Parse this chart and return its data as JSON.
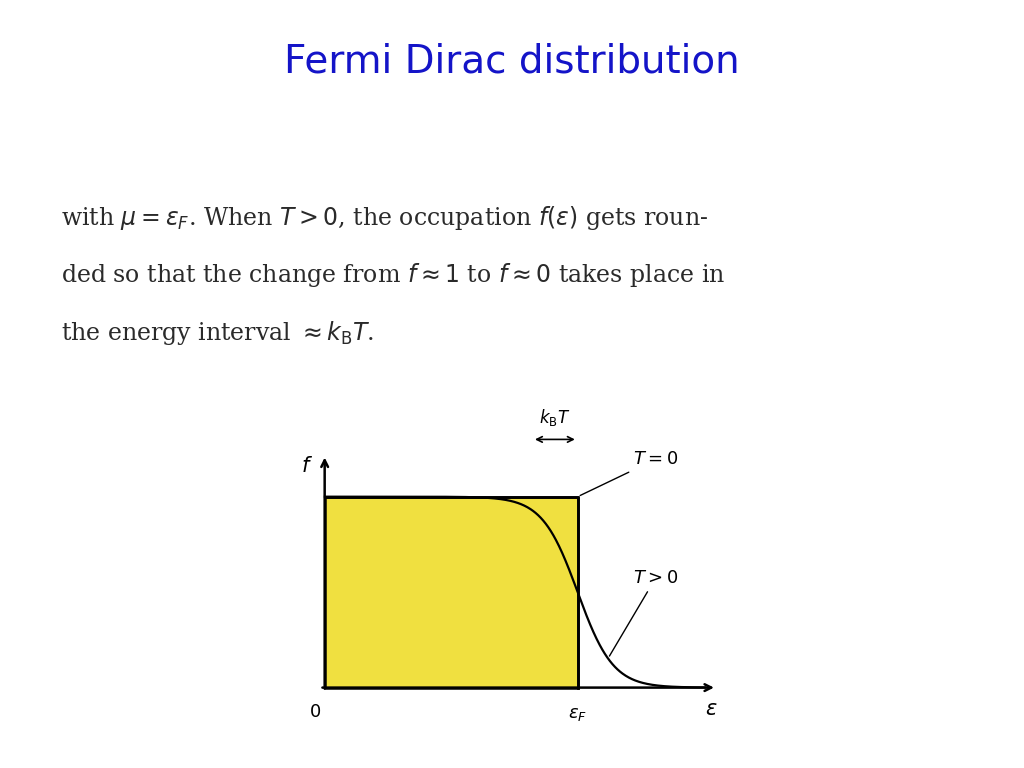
{
  "title": "Fermi Dirac distribution",
  "title_color": "#1414c8",
  "title_fontsize": 28,
  "body_text_line1": "with $\\mu = \\epsilon_F$. When $T > 0$, the occupation $f(\\epsilon)$ gets roun-",
  "body_text_line2": "ded so that the change from $f \\approx 1$ to $f \\approx 0$ takes place in",
  "body_text_line3": "the energy interval $\\approx k_{\\mathrm{B}}T$.",
  "body_text_color": "#2a2a2a",
  "body_fontsize": 17,
  "fig_bgcolor": "#ffffff",
  "yellow_fill": "#f0e040",
  "epsilon_F": 1.0,
  "kBT_visual": 0.07,
  "epsilon_max": 1.55
}
